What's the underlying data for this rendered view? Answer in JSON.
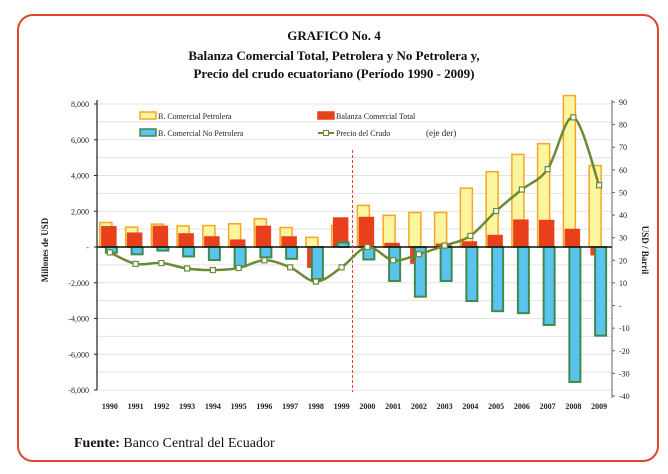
{
  "chart_data": {
    "type": "bar",
    "title": "GRAFICO No. 4",
    "subtitle": [
      "Balanza Comercial Total, Petrolera y No Petrolera y,",
      "Precio del crudo ecuatoriano (Período 1990 - 2009)"
    ],
    "ylabel": "Millones de USD",
    "ylabel_right": "USD / Barril",
    "ylim": [
      -8000,
      8000
    ],
    "ylim_right": [
      -40,
      90
    ],
    "yticks": [
      "8,000",
      "6,000",
      "4,000",
      "2,000",
      "-",
      "-2,000",
      "-4,000",
      "-6,000",
      "-8,000"
    ],
    "yticks_right": [
      "90",
      "80",
      "70",
      "60",
      "50",
      "40",
      "30",
      "20",
      "10",
      "-",
      "-10",
      "-20",
      "-30",
      "-40"
    ],
    "grid": true,
    "legend_position": "top",
    "divider_between": [
      "1999",
      "2000"
    ],
    "categories": [
      "1990",
      "1991",
      "1992",
      "1993",
      "1994",
      "1995",
      "1996",
      "1997",
      "1998",
      "1999",
      "2000",
      "2001",
      "2002",
      "2003",
      "2004",
      "2005",
      "2006",
      "2007",
      "2008",
      "2009"
    ],
    "series": [
      {
        "name": "B. Comercial Petrolera",
        "type": "bar",
        "color": "#fbf5a0",
        "edge": "#f5a623",
        "values": [
          1370,
          1110,
          1280,
          1180,
          1200,
          1300,
          1580,
          1090,
          540,
          1200,
          2330,
          1770,
          1930,
          1930,
          3290,
          4210,
          5180,
          5780,
          8470,
          4560
        ]
      },
      {
        "name": "Balanza Comercial Total",
        "type": "bar",
        "color": "#e8401c",
        "edge": "#e8401c",
        "values": [
          1130,
          770,
          1150,
          730,
          560,
          380,
          1150,
          560,
          -1130,
          1620,
          1650,
          190,
          -900,
          150,
          280,
          640,
          1500,
          1480,
          980,
          -430
        ]
      },
      {
        "name": "B. Comercial No Petrolera",
        "type": "bar",
        "color": "#5bc3f0",
        "edge": "#3f8a4a",
        "values": [
          -320,
          -410,
          -200,
          -530,
          -730,
          -1090,
          -580,
          -660,
          -1790,
          250,
          -700,
          -1900,
          -2780,
          -1900,
          -3020,
          -3590,
          -3700,
          -4360,
          -7550,
          -4960
        ]
      },
      {
        "name": "Precio del Crudo",
        "name_suffix": "(eje  der)",
        "type": "line",
        "axis": "right",
        "color": "#6b8a35",
        "values": [
          23.5,
          18.4,
          18.8,
          16.4,
          15.7,
          16.6,
          20.0,
          16.9,
          10.6,
          16.9,
          25.9,
          20.0,
          22.7,
          26.5,
          30.8,
          41.8,
          51.3,
          60.3,
          83.2,
          53.2
        ]
      }
    ]
  },
  "source": {
    "label": "Fuente:",
    "text": "Banco Central del Ecuador"
  }
}
